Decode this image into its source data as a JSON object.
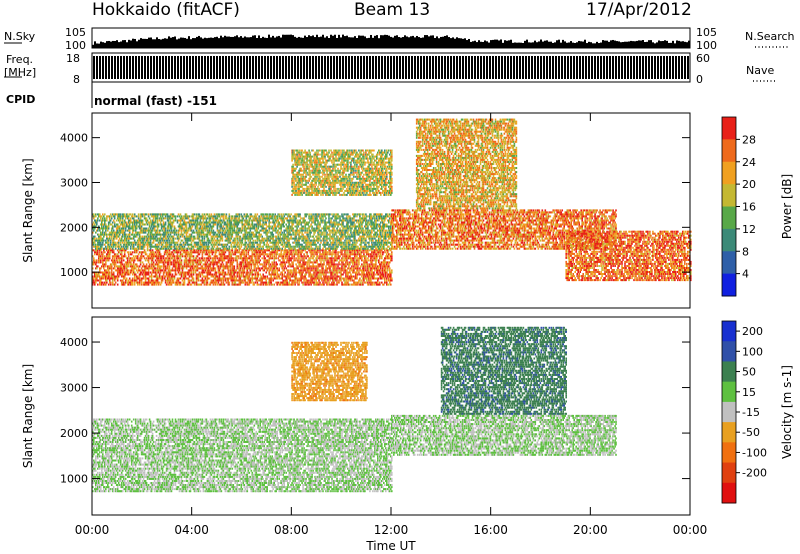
{
  "header": {
    "station": "Hokkaido (fitACF)",
    "beam": "Beam 13",
    "date": "17/Apr/2012"
  },
  "chart_data": [
    {
      "type": "bar",
      "name": "noise-panel",
      "left_label": "N.Sky",
      "right_label": "N.Search",
      "left_ticks": [
        "10^5",
        "10^0"
      ],
      "right_ticks": [
        "10^5",
        "10^0"
      ],
      "level_profile": [
        [
          0,
          0.25
        ],
        [
          12,
          0.5
        ],
        [
          34,
          0.6
        ],
        [
          60,
          0.55
        ],
        [
          64,
          0.35
        ],
        [
          100,
          0.3
        ]
      ]
    },
    {
      "type": "bar",
      "name": "frequency-panel",
      "left_label_top": "Freq.",
      "left_label_unit": "[MHz]",
      "right_label": "Nave",
      "left_ticks": [
        "18",
        "8"
      ],
      "right_ticks": [
        "60",
        "0"
      ],
      "cpid_label": "CPID",
      "cpid_text": "normal (fast) -151"
    },
    {
      "type": "heatmap",
      "name": "power",
      "ylabel": "Slant Range [km]",
      "y_ticks": [
        1000,
        2000,
        3000,
        4000
      ],
      "ylim": [
        200,
        4550
      ],
      "colorbar_label": "Power [dB]",
      "colorbar_ticks": [
        4,
        8,
        12,
        16,
        20,
        24,
        28
      ],
      "colors": [
        "#1020e0",
        "#2e5fa8",
        "#3c8a78",
        "#58a848",
        "#c4b832",
        "#f0a020",
        "#ee6a1c",
        "#e82018"
      ],
      "echo_regions": [
        {
          "t": [
            0,
            12
          ],
          "range": [
            700,
            1500
          ],
          "level": 26
        },
        {
          "t": [
            0,
            12
          ],
          "range": [
            1500,
            2300
          ],
          "level": 15
        },
        {
          "t": [
            8,
            12
          ],
          "range": [
            2700,
            3700
          ],
          "level": 18
        },
        {
          "t": [
            12,
            21
          ],
          "range": [
            1500,
            2400
          ],
          "level": 25
        },
        {
          "t": [
            13,
            17
          ],
          "range": [
            2400,
            4400
          ],
          "level": 21
        },
        {
          "t": [
            19,
            24
          ],
          "range": [
            800,
            1900
          ],
          "level": 26
        }
      ]
    },
    {
      "type": "heatmap",
      "name": "velocity",
      "ylabel": "Slant Range [km]",
      "y_ticks": [
        1000,
        2000,
        3000,
        4000
      ],
      "ylim": [
        200,
        4550
      ],
      "xlabel": "Time UT",
      "x_ticks": [
        "00:00",
        "04:00",
        "08:00",
        "12:00",
        "16:00",
        "20:00",
        "00:00"
      ],
      "colorbar_label": "Velocity [m s^-1]",
      "colorbar_ticks": [
        200,
        100,
        50,
        15,
        -15,
        -50,
        -100,
        -200
      ],
      "colors": [
        "#1830d0",
        "#3050a8",
        "#3c8050",
        "#5ec040",
        "#c0c0c0",
        "#e8a020",
        "#f07010",
        "#e04010",
        "#e01010"
      ],
      "echo_regions": [
        {
          "t": [
            0,
            12
          ],
          "range": [
            700,
            2300
          ],
          "level": 0
        },
        {
          "t": [
            12,
            21
          ],
          "range": [
            1500,
            2400
          ],
          "level": 0
        },
        {
          "t": [
            14,
            19
          ],
          "range": [
            2400,
            4300
          ],
          "level": 60
        },
        {
          "t": [
            8,
            11
          ],
          "range": [
            2700,
            4000
          ],
          "level": -60
        }
      ]
    }
  ]
}
